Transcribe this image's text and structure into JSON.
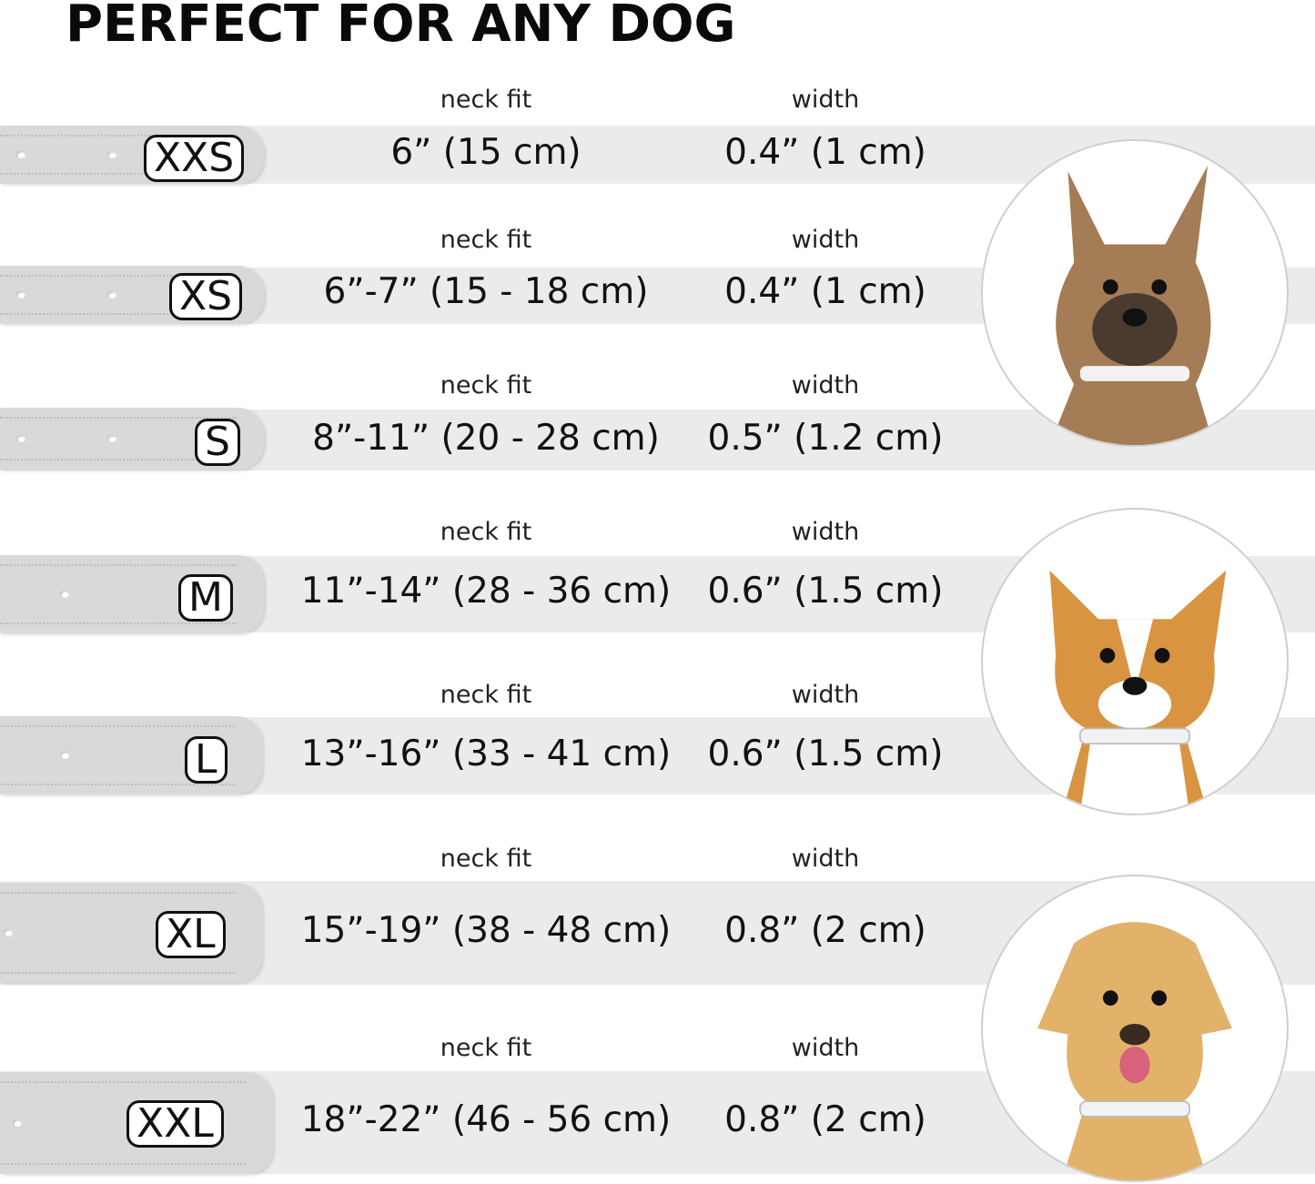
{
  "title": "PERFECT FOR ANY DOG",
  "neck_fit_label": "neck fit",
  "width_label": "width",
  "rows": [
    {
      "size": "XXS",
      "neck_fit": "6” (15 cm)",
      "width": "0.4” (1 cm)"
    },
    {
      "size": "XS",
      "neck_fit": "6”-7” (15 - 18 cm)",
      "width": "0.4” (1 cm)"
    },
    {
      "size": "S",
      "neck_fit": "8”-11” (20 - 28 cm)",
      "width": "0.5” (1.2 cm)"
    },
    {
      "size": "M",
      "neck_fit": "11”-14” (28 - 36 cm)",
      "width": "0.6” (1.5 cm)"
    },
    {
      "size": "L",
      "neck_fit": "13”-16” (33 - 41 cm)",
      "width": "0.6” (1.5 cm)"
    },
    {
      "size": "XL",
      "neck_fit": "15”-19” (38 - 48 cm)",
      "width": "0.8” (2 cm)"
    },
    {
      "size": "XXL",
      "neck_fit": "18”-22” (46 - 56 cm)",
      "width": "0.8” (2 cm)"
    }
  ],
  "dogs": [
    {
      "breed_image": "small-terrier-photo",
      "fur": "#a47c55"
    },
    {
      "breed_image": "corgi-photo",
      "fur": "#d99441"
    },
    {
      "breed_image": "labrador-photo",
      "fur": "#e2b26a"
    }
  ],
  "colors": {
    "band": "#ebebeb",
    "strap": "#d9d9d9",
    "text": "#111111"
  }
}
